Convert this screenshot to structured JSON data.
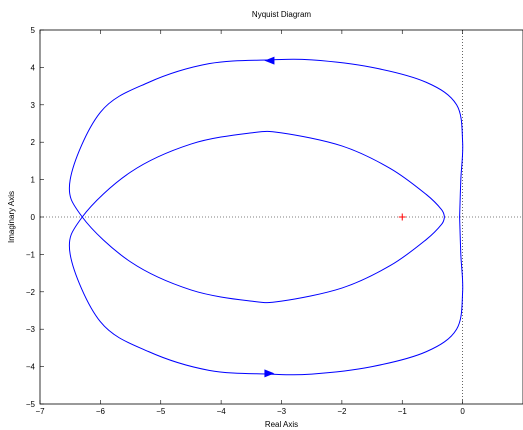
{
  "title": "Nyquist Diagram",
  "chart_data": {
    "type": "line",
    "title": "Nyquist Diagram",
    "xlabel": "Real Axis",
    "ylabel": "Imaginary Axis",
    "xlim": [
      -7,
      1
    ],
    "ylim": [
      -5,
      5
    ],
    "xticks": [
      "−7",
      "−6",
      "−5",
      "−4",
      "−3",
      "−2",
      "−1",
      "0"
    ],
    "yticks": [
      "−5",
      "−4",
      "−3",
      "−2",
      "−1",
      "0",
      "1",
      "2",
      "3",
      "4",
      "5"
    ],
    "grid": false,
    "zero_lines": "dotted",
    "critical_point": {
      "x": -1,
      "y": 0,
      "marker": "+",
      "color": "#ff0000"
    },
    "series": [
      {
        "color": "#0000ff",
        "x": [
          -0.05,
          -0.03,
          0.0,
          -0.1,
          -0.6,
          -1.5,
          -2.5,
          -3.2,
          -4.2,
          -5.2,
          -6.0,
          -6.5,
          -6.3,
          -5.5,
          -4.5,
          -3.5,
          -3.0,
          -2.0,
          -1.2,
          -0.6,
          -0.35,
          -0.3
        ],
        "y": [
          0.0,
          -1.0,
          -2.0,
          -3.0,
          -3.6,
          -4.0,
          -4.2,
          -4.2,
          -4.1,
          -3.6,
          -2.8,
          -1.0,
          0.0,
          1.2,
          1.95,
          2.25,
          2.25,
          1.9,
          1.3,
          0.6,
          0.2,
          0.0
        ]
      },
      {
        "color": "#0000ff",
        "x": [
          -0.05,
          -0.03,
          0.0,
          -0.1,
          -0.6,
          -1.5,
          -2.5,
          -3.2,
          -4.2,
          -5.2,
          -6.0,
          -6.5,
          -6.3,
          -5.5,
          -4.5,
          -3.5,
          -3.0,
          -2.0,
          -1.2,
          -0.6,
          -0.35,
          -0.3
        ],
        "y": [
          0.0,
          1.0,
          2.0,
          3.0,
          3.6,
          4.0,
          4.2,
          4.2,
          4.1,
          3.6,
          2.8,
          1.0,
          0.0,
          -1.2,
          -1.95,
          -2.25,
          -2.25,
          -1.9,
          -1.3,
          -0.6,
          -0.2,
          0.0
        ]
      }
    ],
    "arrows": [
      {
        "x": -3.2,
        "y": 4.18,
        "direction": "left",
        "color": "#0000ff"
      },
      {
        "x": -3.2,
        "y": -4.18,
        "direction": "right",
        "color": "#0000ff"
      }
    ]
  }
}
